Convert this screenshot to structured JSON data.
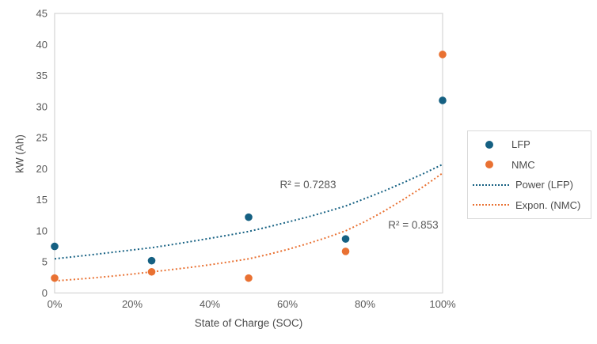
{
  "colors": {
    "lfp_blue": "#156082",
    "nmc_orange": "#E97132",
    "plot_border": "#D4D4D4",
    "tick_text": "#595959",
    "background": "#ffffff"
  },
  "legend": {
    "items": [
      {
        "label": "LFP",
        "swatch": "dot",
        "color": "#156082"
      },
      {
        "label": "NMC",
        "swatch": "dot",
        "color": "#E97132"
      },
      {
        "label": "Power (LFP)",
        "swatch": "dotted-line",
        "color": "#156082"
      },
      {
        "label": "Expon. (NMC)",
        "swatch": "dotted-line",
        "color": "#E97132"
      }
    ]
  },
  "chart_data": {
    "type": "scatter",
    "title": "",
    "xlabel": "State of Charge (SOC)",
    "ylabel": "kW (Ah)",
    "xlim": [
      0,
      100
    ],
    "ylim": [
      0,
      45
    ],
    "grid": false,
    "legend_position": "right-center",
    "x_ticks": [
      {
        "label": "0%",
        "value": 0
      },
      {
        "label": "20%",
        "value": 20
      },
      {
        "label": "40%",
        "value": 40
      },
      {
        "label": "60%",
        "value": 60
      },
      {
        "label": "80%",
        "value": 80
      },
      {
        "label": "100%",
        "value": 100
      }
    ],
    "y_ticks": [
      0,
      5,
      10,
      15,
      20,
      25,
      30,
      35,
      40,
      45
    ],
    "series": [
      {
        "name": "LFP",
        "type": "scatter",
        "color": "#156082",
        "points": [
          [
            0,
            7.5
          ],
          [
            25,
            5.2
          ],
          [
            50,
            12.2
          ],
          [
            75,
            8.7
          ],
          [
            100,
            31
          ]
        ]
      },
      {
        "name": "NMC",
        "type": "scatter",
        "color": "#E97132",
        "points": [
          [
            0,
            2.4
          ],
          [
            25,
            3.4
          ],
          [
            50,
            2.4
          ],
          [
            75,
            6.7
          ],
          [
            100,
            38.4
          ]
        ]
      },
      {
        "name": "Power (LFP)",
        "type": "trendline",
        "style": "dotted",
        "color": "#156082",
        "r_squared": 0.7283,
        "points": [
          [
            0,
            5.5
          ],
          [
            5,
            5.84
          ],
          [
            10,
            6.19
          ],
          [
            15,
            6.55
          ],
          [
            20,
            6.92
          ],
          [
            25,
            7.3
          ],
          [
            30,
            7.77
          ],
          [
            35,
            8.27
          ],
          [
            40,
            8.79
          ],
          [
            45,
            9.33
          ],
          [
            50,
            9.9
          ],
          [
            55,
            10.63
          ],
          [
            60,
            11.4
          ],
          [
            65,
            12.2
          ],
          [
            70,
            13.07
          ],
          [
            75,
            14.0
          ],
          [
            80,
            15.2
          ],
          [
            85,
            16.45
          ],
          [
            90,
            17.8
          ],
          [
            95,
            19.2
          ],
          [
            100,
            20.7
          ]
        ]
      },
      {
        "name": "Expon. (NMC)",
        "type": "trendline",
        "style": "dotted",
        "color": "#E97132",
        "r_squared": 0.853,
        "points": [
          [
            0,
            1.95
          ],
          [
            5,
            2.18
          ],
          [
            10,
            2.43
          ],
          [
            15,
            2.72
          ],
          [
            20,
            3.04
          ],
          [
            25,
            3.4
          ],
          [
            30,
            3.75
          ],
          [
            35,
            4.13
          ],
          [
            40,
            4.55
          ],
          [
            45,
            5.0
          ],
          [
            50,
            5.5
          ],
          [
            55,
            6.2
          ],
          [
            60,
            7.0
          ],
          [
            65,
            7.9
          ],
          [
            70,
            8.9
          ],
          [
            75,
            10.0
          ],
          [
            80,
            11.5
          ],
          [
            85,
            13.2
          ],
          [
            90,
            15.1
          ],
          [
            95,
            17.1
          ],
          [
            100,
            19.3
          ]
        ]
      }
    ],
    "annotations": [
      {
        "text": "R² = 0.7283",
        "series": "Power (LFP)"
      },
      {
        "text": "R² = 0.853",
        "series": "Expon. (NMC)"
      }
    ]
  }
}
